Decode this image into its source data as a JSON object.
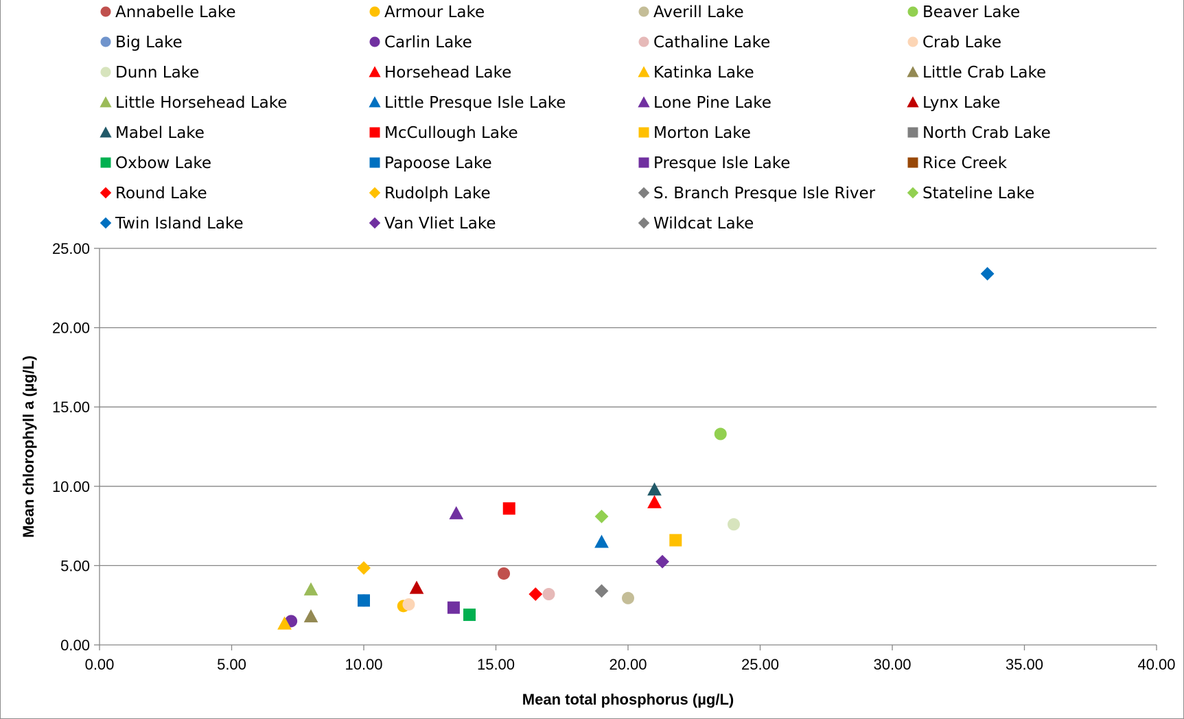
{
  "chart_data": {
    "type": "scatter",
    "title": "",
    "xlabel": "Mean total phosphorus (µg/L)",
    "ylabel": "Mean chlorophyll a (µg/L)",
    "xlim": [
      0,
      40
    ],
    "ylim": [
      0,
      25
    ],
    "x_ticks": [
      "0.00",
      "5.00",
      "10.00",
      "15.00",
      "20.00",
      "25.00",
      "30.00",
      "35.00",
      "40.00"
    ],
    "y_ticks": [
      "0.00",
      "5.00",
      "10.00",
      "15.00",
      "20.00",
      "25.00"
    ],
    "grid": "horizontal",
    "legend_position": "top",
    "series": [
      {
        "name": "Annabelle Lake",
        "marker": "circle",
        "color": "#c0504d",
        "x": 15.3,
        "y": 4.5
      },
      {
        "name": "Armour Lake",
        "marker": "circle",
        "color": "#ffc000",
        "x": 11.5,
        "y": 2.45
      },
      {
        "name": "Averill Lake",
        "marker": "circle",
        "color": "#c4bd97",
        "x": 20.0,
        "y": 2.95
      },
      {
        "name": "Beaver Lake",
        "marker": "circle",
        "color": "#92d050",
        "x": 23.5,
        "y": 13.3
      },
      {
        "name": "Big Lake",
        "marker": "circle",
        "color": "#7094cc",
        "x": 10.0,
        "y": 2.8
      },
      {
        "name": "Carlin Lake",
        "marker": "circle",
        "color": "#7030a0",
        "x": 7.25,
        "y": 1.5
      },
      {
        "name": "Cathaline Lake",
        "marker": "circle",
        "color": "#e6b9b8",
        "x": 17.0,
        "y": 3.2
      },
      {
        "name": "Crab Lake",
        "marker": "circle",
        "color": "#fcd5b5",
        "x": 11.7,
        "y": 2.55
      },
      {
        "name": "Dunn Lake",
        "marker": "circle",
        "color": "#d7e4bd",
        "x": 24.0,
        "y": 7.6
      },
      {
        "name": "Horsehead Lake",
        "marker": "triangle",
        "color": "#ff0000",
        "x": 21.0,
        "y": 9.0
      },
      {
        "name": "Katinka Lake",
        "marker": "triangle",
        "color": "#ffc000",
        "x": 7.0,
        "y": 1.35
      },
      {
        "name": "Little Crab Lake",
        "marker": "triangle",
        "color": "#938953",
        "x": 8.0,
        "y": 1.8
      },
      {
        "name": "Little Horsehead Lake",
        "marker": "triangle",
        "color": "#9bbb59",
        "x": 8.0,
        "y": 3.5
      },
      {
        "name": "Little Presque Isle Lake",
        "marker": "triangle",
        "color": "#0070c0",
        "x": 19.0,
        "y": 6.5
      },
      {
        "name": "Lone Pine Lake",
        "marker": "triangle",
        "color": "#7030a0",
        "x": 13.5,
        "y": 8.3
      },
      {
        "name": "Lynx Lake",
        "marker": "triangle",
        "color": "#c00000",
        "x": 12.0,
        "y": 3.6
      },
      {
        "name": "Mabel Lake",
        "marker": "triangle",
        "color": "#215968",
        "x": 21.0,
        "y": 9.8
      },
      {
        "name": "McCullough Lake",
        "marker": "square",
        "color": "#ff0000",
        "x": 15.5,
        "y": 8.6
      },
      {
        "name": "Morton Lake",
        "marker": "square",
        "color": "#ffc000",
        "x": 21.8,
        "y": 6.6
      },
      {
        "name": "North Crab Lake",
        "marker": "square",
        "color": "#7f7f7f",
        "x": null,
        "y": null
      },
      {
        "name": "Oxbow Lake",
        "marker": "square",
        "color": "#00b050",
        "x": 14.0,
        "y": 1.9
      },
      {
        "name": "Papoose Lake",
        "marker": "square",
        "color": "#0070c0",
        "x": 10.0,
        "y": 2.8
      },
      {
        "name": "Presque Isle Lake",
        "marker": "square",
        "color": "#7030a0",
        "x": 13.4,
        "y": 2.35
      },
      {
        "name": "Rice Creek",
        "marker": "square",
        "color": "#984807",
        "x": null,
        "y": null
      },
      {
        "name": "Round Lake",
        "marker": "diamond",
        "color": "#ff0000",
        "x": 16.5,
        "y": 3.2
      },
      {
        "name": "Rudolph Lake",
        "marker": "diamond",
        "color": "#ffc000",
        "x": 10.0,
        "y": 4.85
      },
      {
        "name": "S. Branch Presque Isle River",
        "marker": "diamond",
        "color": "#7f7f7f",
        "x": 19.0,
        "y": 3.4
      },
      {
        "name": "Stateline Lake",
        "marker": "diamond",
        "color": "#92d050",
        "x": 19.0,
        "y": 8.1
      },
      {
        "name": "Twin Island Lake",
        "marker": "diamond",
        "color": "#0070c0",
        "x": 33.6,
        "y": 23.4
      },
      {
        "name": "Van Vliet Lake",
        "marker": "diamond",
        "color": "#7030a0",
        "x": 21.3,
        "y": 5.25
      },
      {
        "name": "Wildcat Lake",
        "marker": "diamond",
        "color": "#7f7f7f",
        "x": null,
        "y": null
      }
    ]
  }
}
